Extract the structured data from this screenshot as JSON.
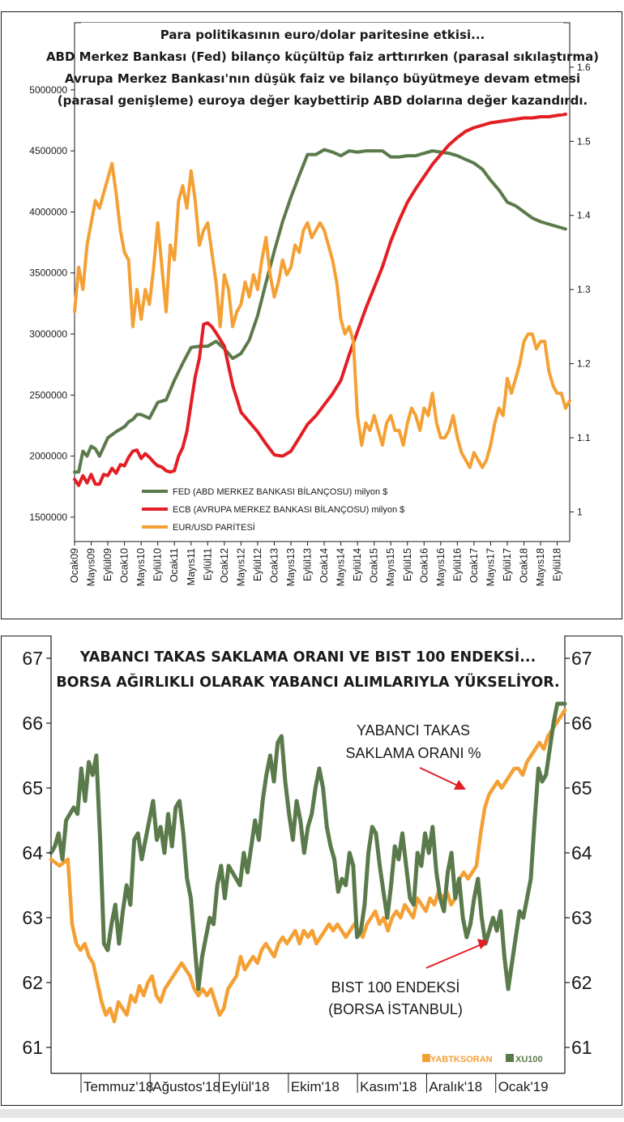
{
  "chart_data": [
    {
      "type": "line",
      "title": "Para politikasının euro/dolar paritesine etkisi... ABD Merkez Bankası (Fed) bilanço küçültüp faiz arttırırken (parasal sıkılaştırma) Avrupa Merkez Bankası'nın düşük faiz ve bilanço büyütmeye devam etmesi (parasal genişleme) euroya değer kaybettirip ABD dolarına değer kazandırdı.",
      "title_lines": [
        "Para politikasının euro/dolar paritesine etkisi...",
        "ABD Merkez Bankası (Fed) bilanço küçültüp faiz arttırırken (parasal sıkılaştırma)",
        "Avrupa Merkez Bankası'nın düşük faiz ve bilanço büyütmeye devam etmesi",
        "(parasal genişleme) euroya değer kaybettirip ABD dolarına değer kazandırdı."
      ],
      "x_tick_labels": [
        "Ocak09",
        "Mayıs09",
        "Eylül09",
        "Ocak10",
        "Mayıs10",
        "Eylül10",
        "Ocak11",
        "Mayıs11",
        "Eylül11",
        "Ocak12",
        "Mayıs12",
        "Eylül12",
        "Ocak13",
        "Mayıs13",
        "Eylül13",
        "Ocak14",
        "Mayıs14",
        "Eylül14",
        "Ocak15",
        "Mayıs15",
        "Eylül15",
        "Ocak16",
        "Mayıs16",
        "Eylül16",
        "Ocak17",
        "Mayıs17",
        "Eylül17",
        "Ocak18",
        "Mayıs18",
        "Eylül18"
      ],
      "y_left": {
        "ticks": [
          1500000,
          2000000,
          2500000,
          3000000,
          3500000,
          4000000,
          4500000,
          5000000
        ],
        "tick_labels": [
          "1500000",
          "2000000",
          "2500000",
          "3000000",
          "3500000",
          "4000000",
          "4500000",
          "5000000"
        ],
        "range": [
          1300000,
          5550000
        ]
      },
      "y_right": {
        "ticks": [
          1.0,
          1.1,
          1.2,
          1.3,
          1.4,
          1.5,
          1.6
        ],
        "tick_labels": [
          "1",
          "1.1",
          "1.2",
          "1.3",
          "1.4",
          "1.5",
          "1.6"
        ],
        "range": [
          0.96,
          1.66
        ]
      },
      "legend_position": "bottom-left",
      "series": [
        {
          "name": "FED (ABD MERKEZ BANKASI BİLANÇOSU) milyon $",
          "color": "#5b7a4b",
          "axis": "left",
          "months": [
            0,
            1,
            2,
            3,
            4,
            5,
            6,
            8,
            10,
            12,
            13,
            14,
            15,
            16,
            18,
            20,
            22,
            24,
            26,
            28,
            30,
            32,
            34,
            36,
            38,
            40,
            42,
            44,
            46,
            48,
            50,
            52,
            54,
            56,
            58,
            60,
            62,
            64,
            66,
            68,
            70,
            72,
            74,
            76,
            78,
            80,
            82,
            84,
            86,
            88,
            90,
            92,
            94,
            96,
            98,
            100,
            102,
            104,
            106,
            108,
            110,
            112,
            114,
            116,
            118
          ],
          "values": [
            1870000,
            1870000,
            2040000,
            2000000,
            2080000,
            2060000,
            2000000,
            2150000,
            2200000,
            2240000,
            2280000,
            2300000,
            2340000,
            2340000,
            2310000,
            2440000,
            2460000,
            2620000,
            2760000,
            2890000,
            2900000,
            2900000,
            2940000,
            2880000,
            2800000,
            2840000,
            2950000,
            3150000,
            3420000,
            3680000,
            3920000,
            4120000,
            4300000,
            4470000,
            4470000,
            4510000,
            4490000,
            4460000,
            4500000,
            4490000,
            4500000,
            4500000,
            4500000,
            4450000,
            4450000,
            4460000,
            4460000,
            4480000,
            4500000,
            4490000,
            4480000,
            4460000,
            4430000,
            4400000,
            4350000,
            4260000,
            4180000,
            4080000,
            4050000,
            4000000,
            3950000,
            3920000,
            3900000,
            3880000,
            3860000
          ]
        },
        {
          "name": "ECB (AVRUPA MERKEZ BANKASI BİLANÇOSU) milyon $",
          "color": "#e31e24",
          "axis": "left",
          "months": [
            0,
            1,
            2,
            3,
            4,
            5,
            6,
            7,
            8,
            9,
            10,
            11,
            12,
            13,
            14,
            15,
            16,
            17,
            18,
            19,
            20,
            21,
            22,
            23,
            24,
            25,
            26,
            27,
            28,
            29,
            30,
            31,
            32,
            33,
            34,
            36,
            38,
            40,
            42,
            44,
            46,
            48,
            50,
            52,
            54,
            56,
            58,
            60,
            62,
            64,
            66,
            68,
            70,
            72,
            74,
            76,
            78,
            80,
            82,
            84,
            86,
            88,
            90,
            92,
            94,
            96,
            98,
            100,
            102,
            104,
            106,
            108,
            110,
            112,
            114,
            116,
            118
          ],
          "values": [
            1810000,
            1760000,
            1840000,
            1780000,
            1850000,
            1770000,
            1770000,
            1850000,
            1840000,
            1900000,
            1860000,
            1930000,
            1920000,
            1990000,
            2040000,
            2050000,
            1980000,
            2020000,
            1990000,
            1950000,
            1920000,
            1910000,
            1880000,
            1870000,
            1880000,
            2000000,
            2070000,
            2200000,
            2430000,
            2650000,
            2800000,
            3080000,
            3090000,
            3060000,
            3010000,
            2900000,
            2580000,
            2360000,
            2280000,
            2200000,
            2100000,
            2010000,
            2000000,
            2040000,
            2150000,
            2260000,
            2330000,
            2420000,
            2510000,
            2620000,
            2830000,
            3020000,
            3210000,
            3380000,
            3550000,
            3760000,
            3930000,
            4080000,
            4190000,
            4290000,
            4390000,
            4470000,
            4550000,
            4610000,
            4660000,
            4690000,
            4710000,
            4730000,
            4740000,
            4750000,
            4760000,
            4770000,
            4770000,
            4780000,
            4780000,
            4790000,
            4800000
          ]
        },
        {
          "name": "EUR/USD PARİTESİ",
          "color": "#f4a034",
          "axis": "right",
          "months": [
            0,
            1,
            2,
            3,
            4,
            5,
            6,
            7,
            8,
            9,
            10,
            11,
            12,
            13,
            14,
            15,
            16,
            17,
            18,
            19,
            20,
            21,
            22,
            23,
            24,
            25,
            26,
            27,
            28,
            29,
            30,
            31,
            32,
            33,
            34,
            35,
            36,
            37,
            38,
            39,
            40,
            41,
            42,
            43,
            44,
            45,
            46,
            47,
            48,
            49,
            50,
            51,
            52,
            53,
            54,
            55,
            56,
            57,
            58,
            59,
            60,
            61,
            62,
            63,
            64,
            65,
            66,
            67,
            68,
            69,
            70,
            71,
            72,
            73,
            74,
            75,
            76,
            77,
            78,
            79,
            80,
            81,
            82,
            83,
            84,
            85,
            86,
            87,
            88,
            89,
            90,
            91,
            92,
            93,
            94,
            95,
            96,
            97,
            98,
            99,
            100,
            101,
            102,
            103,
            104,
            105,
            106,
            107,
            108,
            109,
            110,
            111,
            112,
            113,
            114,
            115,
            116,
            117,
            118,
            119
          ],
          "values": [
            1.27,
            1.33,
            1.3,
            1.36,
            1.39,
            1.42,
            1.41,
            1.43,
            1.45,
            1.47,
            1.43,
            1.38,
            1.35,
            1.34,
            1.25,
            1.3,
            1.26,
            1.3,
            1.28,
            1.33,
            1.39,
            1.33,
            1.27,
            1.36,
            1.34,
            1.42,
            1.44,
            1.41,
            1.46,
            1.42,
            1.36,
            1.38,
            1.39,
            1.35,
            1.31,
            1.25,
            1.32,
            1.3,
            1.25,
            1.27,
            1.28,
            1.31,
            1.29,
            1.32,
            1.3,
            1.34,
            1.37,
            1.32,
            1.29,
            1.31,
            1.34,
            1.32,
            1.33,
            1.36,
            1.35,
            1.38,
            1.39,
            1.37,
            1.38,
            1.39,
            1.38,
            1.36,
            1.34,
            1.31,
            1.26,
            1.24,
            1.25,
            1.23,
            1.13,
            1.09,
            1.12,
            1.11,
            1.13,
            1.11,
            1.09,
            1.12,
            1.13,
            1.11,
            1.11,
            1.09,
            1.12,
            1.14,
            1.13,
            1.11,
            1.14,
            1.13,
            1.16,
            1.12,
            1.1,
            1.1,
            1.11,
            1.13,
            1.1,
            1.08,
            1.07,
            1.06,
            1.08,
            1.07,
            1.06,
            1.07,
            1.09,
            1.12,
            1.14,
            1.13,
            1.18,
            1.16,
            1.18,
            1.2,
            1.23,
            1.24,
            1.24,
            1.22,
            1.23,
            1.23,
            1.19,
            1.17,
            1.16,
            1.16,
            1.14,
            1.15
          ]
        }
      ]
    },
    {
      "type": "line",
      "title": "YABANCI TAKAS SAKLAMA ORANI VE BIST 100 ENDEKSİ... BORSA AĞIRLIKLI OLARAK YABANCI ALIMLARIYLA YÜKSELİYOR.",
      "title_lines": [
        "YABANCI TAKAS SAKLAMA ORANI VE BIST 100 ENDEKSİ...",
        "BORSA AĞIRLIKLI OLARAK YABANCI ALIMLARIYLA YÜKSELİYOR."
      ],
      "x_tick_labels": [
        "Temmuz'18",
        "Ağustos'18",
        "Eylül'18",
        "Ekim'18",
        "Kasım'18",
        "Aralık'18",
        "Ocak'19"
      ],
      "y_left": {
        "ticks": [
          61,
          62,
          63,
          64,
          65,
          66,
          67
        ],
        "tick_labels": [
          "61",
          "62",
          "63",
          "64",
          "65",
          "66",
          "67"
        ],
        "range": [
          60.6,
          67.35
        ]
      },
      "y_right": {
        "ticks": [
          61,
          62,
          63,
          64,
          65,
          66,
          67
        ],
        "tick_labels": [
          "61",
          "62",
          "63",
          "64",
          "65",
          "66",
          "67"
        ],
        "range": [
          60.6,
          67.35
        ]
      },
      "annotations": [
        {
          "lines": [
            "YABANCI TAKAS",
            "SAKLAMA ORANI %"
          ]
        },
        {
          "lines": [
            "BIST 100 ENDEKSİ",
            "(BORSA İSTANBUL)"
          ]
        }
      ],
      "legend_position": "bottom-right",
      "series": [
        {
          "name": "YABTKSORAN",
          "color": "#f4a034",
          "values": [
            63.9,
            63.85,
            63.8,
            63.85,
            63.9,
            62.9,
            62.6,
            62.5,
            62.6,
            62.4,
            62.3,
            62.0,
            61.7,
            61.5,
            61.6,
            61.4,
            61.7,
            61.6,
            61.5,
            61.8,
            61.7,
            61.95,
            61.8,
            62.0,
            62.1,
            61.8,
            61.7,
            61.9,
            62.0,
            62.1,
            62.2,
            62.3,
            62.2,
            62.1,
            61.9,
            61.8,
            61.9,
            61.8,
            61.9,
            61.7,
            61.5,
            61.6,
            61.9,
            62.0,
            62.1,
            62.4,
            62.2,
            62.3,
            62.4,
            62.3,
            62.5,
            62.6,
            62.5,
            62.4,
            62.6,
            62.7,
            62.6,
            62.7,
            62.8,
            62.6,
            62.8,
            62.7,
            62.8,
            62.6,
            62.7,
            62.8,
            62.9,
            62.8,
            62.9,
            62.8,
            62.7,
            62.8,
            62.9,
            62.8,
            62.7,
            62.9,
            63.0,
            63.1,
            62.9,
            63.0,
            62.8,
            63.0,
            63.1,
            63.0,
            63.2,
            63.1,
            63.0,
            63.3,
            63.2,
            63.1,
            63.3,
            63.2,
            63.4,
            63.3,
            63.4,
            63.2,
            63.3,
            63.6,
            63.7,
            63.6,
            63.7,
            63.8,
            64.3,
            64.7,
            64.9,
            65.0,
            65.1,
            65.0,
            65.1,
            65.2,
            65.3,
            65.3,
            65.2,
            65.4,
            65.5,
            65.6,
            65.7,
            65.6,
            65.8,
            65.9,
            66.0,
            66.1,
            66.2
          ]
        },
        {
          "name": "XU100",
          "color": "#5b7a4b",
          "values": [
            64.0,
            64.1,
            64.3,
            63.9,
            64.5,
            64.6,
            64.7,
            64.6,
            65.3,
            64.8,
            65.4,
            65.2,
            65.5,
            64.2,
            62.6,
            62.5,
            62.9,
            63.2,
            62.6,
            63.1,
            63.5,
            63.2,
            64.2,
            64.3,
            63.9,
            64.2,
            64.5,
            64.8,
            64.2,
            64.4,
            64.0,
            64.6,
            64.1,
            64.7,
            64.8,
            64.3,
            63.6,
            63.3,
            62.6,
            61.9,
            62.4,
            62.7,
            63.0,
            62.9,
            63.5,
            63.8,
            63.3,
            63.8,
            63.7,
            63.6,
            63.5,
            64.0,
            63.7,
            64.1,
            64.5,
            64.2,
            64.8,
            65.2,
            65.5,
            65.1,
            65.7,
            65.8,
            65.1,
            64.6,
            64.2,
            64.8,
            64.5,
            64.0,
            64.4,
            64.6,
            65.0,
            65.3,
            65.0,
            64.4,
            64.1,
            63.9,
            63.4,
            63.6,
            63.5,
            64.0,
            63.8,
            62.7,
            62.8,
            63.2,
            64.0,
            64.4,
            64.3,
            63.8,
            63.4,
            63.0,
            63.5,
            64.1,
            63.9,
            64.3,
            63.8,
            63.3,
            63.2,
            64.0,
            63.8,
            64.3,
            64.0,
            64.4,
            63.7,
            63.3,
            63.1,
            63.7,
            64.0,
            63.3,
            63.6,
            63.0,
            62.7,
            62.9,
            63.3,
            63.6,
            63.0,
            62.6,
            62.8,
            63.0,
            62.8,
            63.1,
            62.4,
            61.9,
            62.3,
            62.7,
            63.1,
            63.0,
            63.3,
            63.6,
            64.5,
            65.3,
            65.1,
            65.2,
            65.6,
            66.0,
            66.3,
            66.3,
            66.3
          ]
        }
      ]
    }
  ]
}
